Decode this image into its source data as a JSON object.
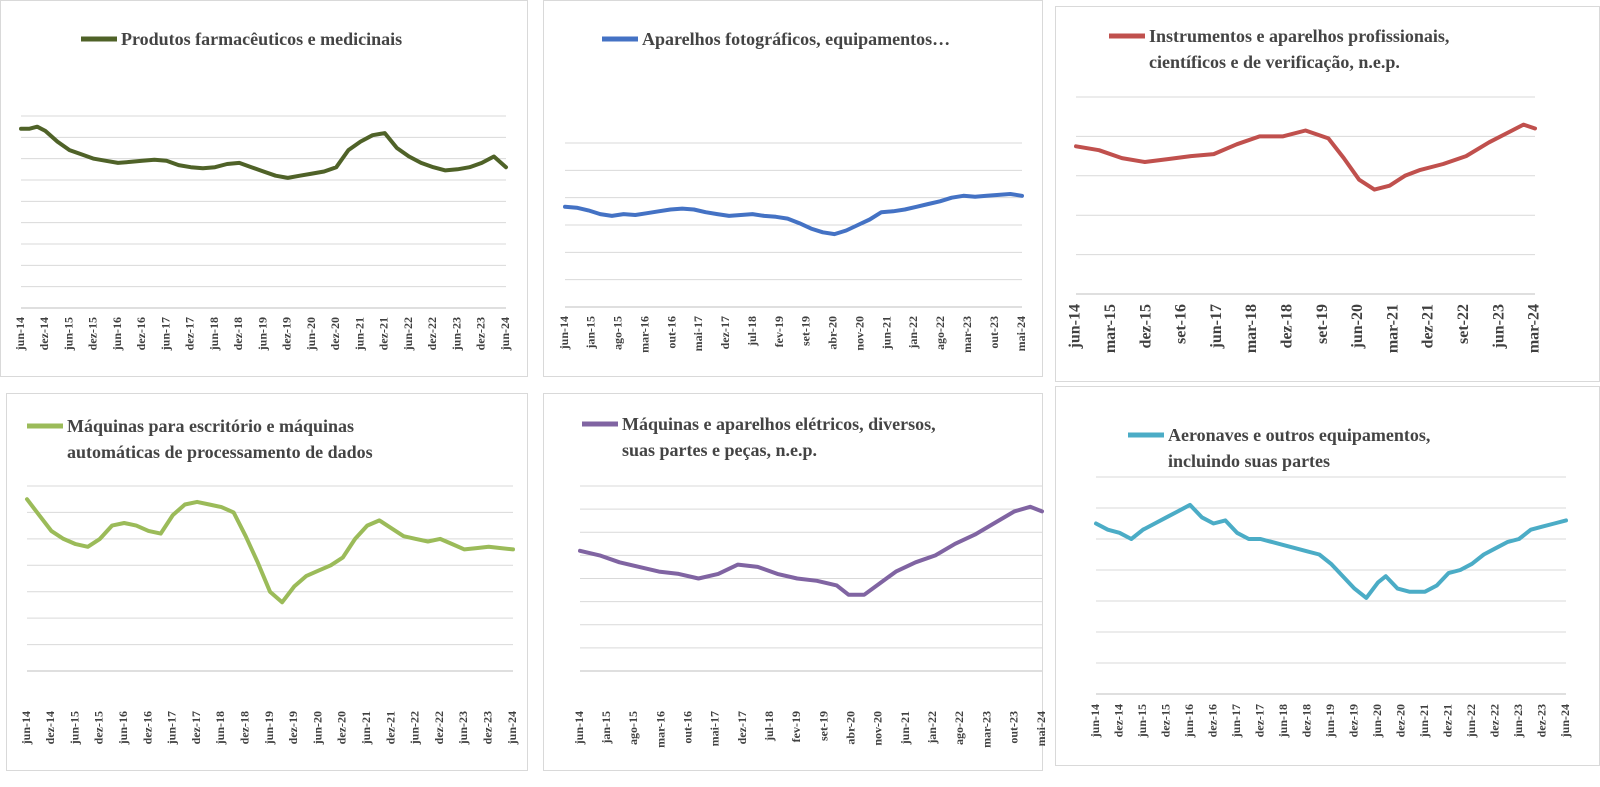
{
  "chart_data": [
    {
      "type": "line",
      "title_lines": [
        "Produtos farmacêuticos e medicinais"
      ],
      "color": "#4f6228",
      "x_tick_labels": [
        "jun-14",
        "dez-14",
        "jun-15",
        "dez-15",
        "jun-16",
        "dez-16",
        "jun-17",
        "dez-17",
        "jun-18",
        "dez-18",
        "jun-19",
        "dez-19",
        "jun-20",
        "dez-20",
        "jun-21",
        "dez-21",
        "jun-22",
        "dez-22",
        "jun-23",
        "dez-23",
        "jun-24"
      ],
      "x_range": [
        "jun-14",
        "jun-24"
      ],
      "ylim": [
        0,
        9
      ],
      "gridlines": 9,
      "legend": "top",
      "series": [
        {
          "points": [
            [
              0,
              8.4
            ],
            [
              2,
              8.4
            ],
            [
              4,
              8.5
            ],
            [
              6,
              8.3
            ],
            [
              9,
              7.8
            ],
            [
              12,
              7.4
            ],
            [
              15,
              7.2
            ],
            [
              18,
              7.0
            ],
            [
              21,
              6.9
            ],
            [
              24,
              6.8
            ],
            [
              27,
              6.85
            ],
            [
              30,
              6.9
            ],
            [
              33,
              6.95
            ],
            [
              36,
              6.9
            ],
            [
              39,
              6.7
            ],
            [
              42,
              6.6
            ],
            [
              45,
              6.55
            ],
            [
              48,
              6.6
            ],
            [
              51,
              6.75
            ],
            [
              54,
              6.8
            ],
            [
              57,
              6.6
            ],
            [
              60,
              6.4
            ],
            [
              63,
              6.2
            ],
            [
              66,
              6.1
            ],
            [
              69,
              6.2
            ],
            [
              72,
              6.3
            ],
            [
              75,
              6.4
            ],
            [
              78,
              6.6
            ],
            [
              81,
              7.4
            ],
            [
              84,
              7.8
            ],
            [
              87,
              8.1
            ],
            [
              90,
              8.2
            ],
            [
              93,
              7.5
            ],
            [
              96,
              7.1
            ],
            [
              99,
              6.8
            ],
            [
              102,
              6.6
            ],
            [
              105,
              6.45
            ],
            [
              108,
              6.5
            ],
            [
              111,
              6.6
            ],
            [
              114,
              6.8
            ],
            [
              117,
              7.1
            ],
            [
              120,
              6.6
            ]
          ]
        }
      ]
    },
    {
      "type": "line",
      "title_lines": [
        "Aparelhos fotográficos, equipamentos…"
      ],
      "color": "#4472c4",
      "x_tick_labels": [
        "jun-14",
        "jan-15",
        "ago-15",
        "mar-16",
        "out-16",
        "mai-17",
        "dez-17",
        "jul-18",
        "fev-19",
        "set-19",
        "abr-20",
        "nov-20",
        "jun-21",
        "jan-22",
        "ago-22",
        "mar-23",
        "out-23",
        "mai-24"
      ],
      "x_range": [
        "jun-14",
        "mai-24"
      ],
      "ylim": [
        0,
        9
      ],
      "gridlines": 6,
      "legend": "top",
      "series": [
        {
          "points": [
            [
              0,
              5.5
            ],
            [
              3,
              5.45
            ],
            [
              6,
              5.3
            ],
            [
              9,
              5.1
            ],
            [
              12,
              5.0
            ],
            [
              15,
              5.1
            ],
            [
              18,
              5.05
            ],
            [
              21,
              5.15
            ],
            [
              24,
              5.25
            ],
            [
              27,
              5.35
            ],
            [
              30,
              5.4
            ],
            [
              33,
              5.35
            ],
            [
              36,
              5.2
            ],
            [
              39,
              5.1
            ],
            [
              42,
              5.0
            ],
            [
              45,
              5.05
            ],
            [
              48,
              5.1
            ],
            [
              51,
              5.0
            ],
            [
              54,
              4.95
            ],
            [
              57,
              4.85
            ],
            [
              60,
              4.6
            ],
            [
              63,
              4.3
            ],
            [
              66,
              4.1
            ],
            [
              69,
              4.0
            ],
            [
              72,
              4.2
            ],
            [
              75,
              4.5
            ],
            [
              78,
              4.8
            ],
            [
              81,
              5.2
            ],
            [
              84,
              5.25
            ],
            [
              87,
              5.35
            ],
            [
              90,
              5.5
            ],
            [
              93,
              5.65
            ],
            [
              96,
              5.8
            ],
            [
              99,
              6.0
            ],
            [
              102,
              6.1
            ],
            [
              105,
              6.05
            ],
            [
              108,
              6.1
            ],
            [
              111,
              6.15
            ],
            [
              114,
              6.2
            ],
            [
              117,
              6.1
            ]
          ]
        }
      ]
    },
    {
      "type": "line",
      "title_lines": [
        "Instrumentos e aparelhos profissionais,",
        "científicos e de verificação, n.e.p."
      ],
      "color": "#c0504d",
      "x_tick_labels": [
        "jun-14",
        "mar-15",
        "dez-15",
        "set-16",
        "jun-17",
        "mar-18",
        "dez-18",
        "set-19",
        "jun-20",
        "mar-21",
        "dez-21",
        "set-22",
        "jun-23",
        "mar-24"
      ],
      "x_range": [
        "jun-14",
        "jun-24"
      ],
      "ylim": [
        0,
        10
      ],
      "gridlines": 5,
      "legend": "top",
      "series": [
        {
          "points": [
            [
              0,
              7.5
            ],
            [
              6,
              7.3
            ],
            [
              12,
              6.9
            ],
            [
              18,
              6.7
            ],
            [
              24,
              6.85
            ],
            [
              30,
              7.0
            ],
            [
              36,
              7.1
            ],
            [
              42,
              7.6
            ],
            [
              48,
              8.0
            ],
            [
              54,
              8.0
            ],
            [
              60,
              8.3
            ],
            [
              66,
              7.9
            ],
            [
              70,
              6.9
            ],
            [
              74,
              5.8
            ],
            [
              78,
              5.3
            ],
            [
              82,
              5.5
            ],
            [
              86,
              6.0
            ],
            [
              90,
              6.3
            ],
            [
              96,
              6.6
            ],
            [
              102,
              7.0
            ],
            [
              108,
              7.7
            ],
            [
              114,
              8.3
            ],
            [
              117,
              8.6
            ],
            [
              120,
              8.4
            ]
          ]
        }
      ]
    },
    {
      "type": "line",
      "title_lines": [
        "Máquinas para escritório e máquinas",
        "automáticas de processamento de dados"
      ],
      "color": "#9bbb59",
      "x_tick_labels": [
        "jun-14",
        "dez-14",
        "jun-15",
        "dez-15",
        "jun-16",
        "dez-16",
        "jun-17",
        "dez-17",
        "jun-18",
        "dez-18",
        "jun-19",
        "dez-19",
        "jun-20",
        "dez-20",
        "jun-21",
        "dez-21",
        "jun-22",
        "dez-22",
        "jun-23",
        "dez-23",
        "jun-24"
      ],
      "x_range": [
        "jun-14",
        "jun-24"
      ],
      "ylim": [
        0,
        7
      ],
      "gridlines": 7,
      "legend": "top",
      "series": [
        {
          "points": [
            [
              0,
              6.5
            ],
            [
              3,
              5.9
            ],
            [
              6,
              5.3
            ],
            [
              9,
              5.0
            ],
            [
              12,
              4.8
            ],
            [
              15,
              4.7
            ],
            [
              18,
              5.0
            ],
            [
              21,
              5.5
            ],
            [
              24,
              5.6
            ],
            [
              27,
              5.5
            ],
            [
              30,
              5.3
            ],
            [
              33,
              5.2
            ],
            [
              36,
              5.9
            ],
            [
              39,
              6.3
            ],
            [
              42,
              6.4
            ],
            [
              45,
              6.3
            ],
            [
              48,
              6.2
            ],
            [
              51,
              6.0
            ],
            [
              54,
              5.1
            ],
            [
              57,
              4.1
            ],
            [
              60,
              3.0
            ],
            [
              63,
              2.6
            ],
            [
              66,
              3.2
            ],
            [
              69,
              3.6
            ],
            [
              72,
              3.8
            ],
            [
              75,
              4.0
            ],
            [
              78,
              4.3
            ],
            [
              81,
              5.0
            ],
            [
              84,
              5.5
            ],
            [
              87,
              5.7
            ],
            [
              90,
              5.4
            ],
            [
              93,
              5.1
            ],
            [
              96,
              5.0
            ],
            [
              99,
              4.9
            ],
            [
              102,
              5.0
            ],
            [
              105,
              4.8
            ],
            [
              108,
              4.6
            ],
            [
              111,
              4.65
            ],
            [
              114,
              4.7
            ],
            [
              117,
              4.65
            ],
            [
              120,
              4.6
            ]
          ]
        }
      ]
    },
    {
      "type": "line",
      "title_lines": [
        "Máquinas e aparelhos elétricos, diversos,",
        "suas partes e peças, n.e.p."
      ],
      "color": "#8064a2",
      "x_tick_labels": [
        "jun-14",
        "jan-15",
        "ago-15",
        "mar-16",
        "out-16",
        "mai-17",
        "dez-17",
        "jul-18",
        "fev-19",
        "set-19",
        "abr-20",
        "nov-20",
        "jun-21",
        "jan-22",
        "ago-22",
        "mar-23",
        "out-23",
        "mai-24"
      ],
      "x_range": [
        "jun-14",
        "mai-24"
      ],
      "ylim": [
        0,
        8
      ],
      "gridlines": 8,
      "legend": "top",
      "series": [
        {
          "points": [
            [
              0,
              5.2
            ],
            [
              5,
              5.0
            ],
            [
              10,
              4.7
            ],
            [
              15,
              4.5
            ],
            [
              20,
              4.3
            ],
            [
              25,
              4.2
            ],
            [
              30,
              4.0
            ],
            [
              35,
              4.2
            ],
            [
              40,
              4.6
            ],
            [
              45,
              4.5
            ],
            [
              50,
              4.2
            ],
            [
              55,
              4.0
            ],
            [
              60,
              3.9
            ],
            [
              65,
              3.7
            ],
            [
              68,
              3.3
            ],
            [
              72,
              3.3
            ],
            [
              76,
              3.8
            ],
            [
              80,
              4.3
            ],
            [
              85,
              4.7
            ],
            [
              90,
              5.0
            ],
            [
              95,
              5.5
            ],
            [
              100,
              5.9
            ],
            [
              105,
              6.4
            ],
            [
              110,
              6.9
            ],
            [
              114,
              7.1
            ],
            [
              117,
              6.9
            ]
          ]
        }
      ]
    },
    {
      "type": "line",
      "title_lines": [
        "Aeronaves e outros equipamentos,",
        "incluindo suas partes"
      ],
      "color": "#4bacc6",
      "x_tick_labels": [
        "jun-14",
        "dez-14",
        "jun-15",
        "dez-15",
        "jun-16",
        "dez-16",
        "jun-17",
        "dez-17",
        "jun-18",
        "dez-18",
        "jun-19",
        "dez-19",
        "jun-20",
        "dez-20",
        "jun-21",
        "dez-21",
        "jun-22",
        "dez-22",
        "jun-23",
        "dez-23",
        "jun-24"
      ],
      "x_range": [
        "jun-14",
        "jun-24"
      ],
      "ylim": [
        0,
        7
      ],
      "gridlines": 7,
      "legend": "top",
      "series": [
        {
          "points": [
            [
              0,
              5.5
            ],
            [
              3,
              5.3
            ],
            [
              6,
              5.2
            ],
            [
              9,
              5.0
            ],
            [
              12,
              5.3
            ],
            [
              15,
              5.5
            ],
            [
              18,
              5.7
            ],
            [
              21,
              5.9
            ],
            [
              24,
              6.1
            ],
            [
              27,
              5.7
            ],
            [
              30,
              5.5
            ],
            [
              33,
              5.6
            ],
            [
              36,
              5.2
            ],
            [
              39,
              5.0
            ],
            [
              42,
              5.0
            ],
            [
              45,
              4.9
            ],
            [
              48,
              4.8
            ],
            [
              51,
              4.7
            ],
            [
              54,
              4.6
            ],
            [
              57,
              4.5
            ],
            [
              60,
              4.2
            ],
            [
              63,
              3.8
            ],
            [
              66,
              3.4
            ],
            [
              69,
              3.1
            ],
            [
              72,
              3.6
            ],
            [
              74,
              3.8
            ],
            [
              77,
              3.4
            ],
            [
              80,
              3.3
            ],
            [
              84,
              3.3
            ],
            [
              87,
              3.5
            ],
            [
              90,
              3.9
            ],
            [
              93,
              4.0
            ],
            [
              96,
              4.2
            ],
            [
              99,
              4.5
            ],
            [
              102,
              4.7
            ],
            [
              105,
              4.9
            ],
            [
              108,
              5.0
            ],
            [
              111,
              5.3
            ],
            [
              114,
              5.4
            ],
            [
              117,
              5.5
            ],
            [
              120,
              5.6
            ]
          ]
        }
      ]
    }
  ]
}
